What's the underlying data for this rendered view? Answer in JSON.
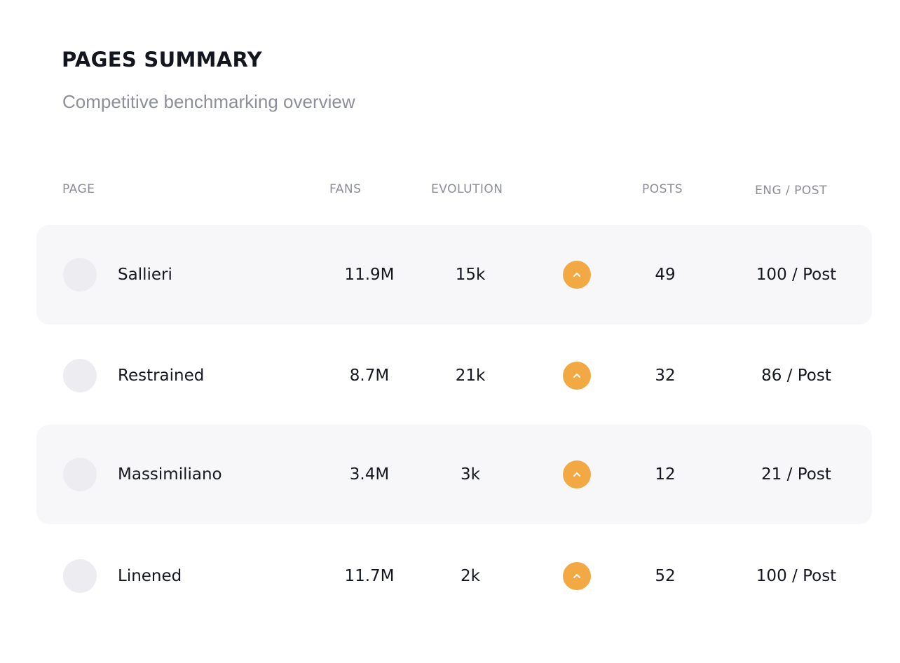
{
  "header": {
    "title": "PAGES SUMMARY",
    "subtitle": "Competitive benchmarking overview"
  },
  "table": {
    "columns": {
      "page": "PAGE",
      "fans": "FANS",
      "evolution": "EVOLUTION",
      "posts": "POSTS",
      "eng_post": "ENG / POST"
    },
    "rows": [
      {
        "name": "Sallieri",
        "fans": "11.9M",
        "evolution": "15k",
        "trend_icon": "chevron-up-icon",
        "posts": "49",
        "eng_post": "100 / Post"
      },
      {
        "name": "Restrained",
        "fans": "8.7M",
        "evolution": "21k",
        "trend_icon": "chevron-up-icon",
        "posts": "32",
        "eng_post": "86 / Post"
      },
      {
        "name": "Massimiliano",
        "fans": "3.4M",
        "evolution": "3k",
        "trend_icon": "chevron-up-icon",
        "posts": "12",
        "eng_post": "21 / Post"
      },
      {
        "name": "Linened",
        "fans": "11.7M",
        "evolution": "2k",
        "trend_icon": "chevron-up-icon",
        "posts": "52",
        "eng_post": "100 / Post"
      }
    ]
  },
  "colors": {
    "trend_up": "#f2a944",
    "row_shade": "#f7f7fa",
    "avatar_placeholder": "#ececf1"
  }
}
